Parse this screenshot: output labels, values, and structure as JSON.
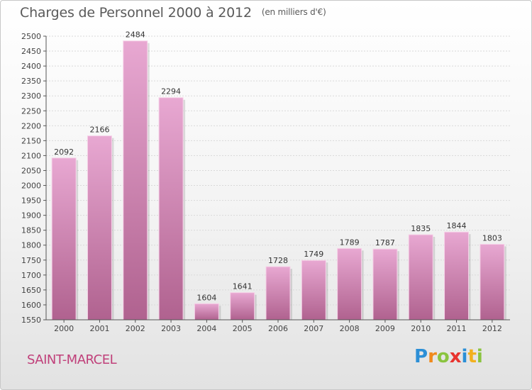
{
  "title": "Charges de Personnel 2000 à 2012",
  "unit_note": "(en milliers d'€)",
  "location": "SAINT-MARCEL",
  "brand": {
    "letters": [
      "P",
      "r",
      "o",
      "x",
      "i",
      "t",
      "i"
    ],
    "colors": [
      "#2c8fd6",
      "#f08a1c",
      "#8ac43f",
      "#e8342f",
      "#2c8fd6",
      "#f2b01e",
      "#8ac43f"
    ]
  },
  "colors": {
    "bar_top": "#e8a8d2",
    "bar_bottom": "#b0628f",
    "grid": "#d9d9d9",
    "axis": "#555555"
  },
  "chart_data": {
    "type": "bar",
    "title": "Charges de Personnel 2000 à 2012",
    "xlabel": "",
    "ylabel": "",
    "categories": [
      "2000",
      "2001",
      "2002",
      "2003",
      "2004",
      "2005",
      "2006",
      "2007",
      "2008",
      "2009",
      "2010",
      "2011",
      "2012"
    ],
    "values": [
      2092,
      2166,
      2484,
      2294,
      1604,
      1641,
      1728,
      1749,
      1789,
      1787,
      1835,
      1844,
      1803
    ],
    "ylim": [
      1550,
      2500
    ],
    "ytick_step": 50,
    "grid": true,
    "data_labels": true
  }
}
